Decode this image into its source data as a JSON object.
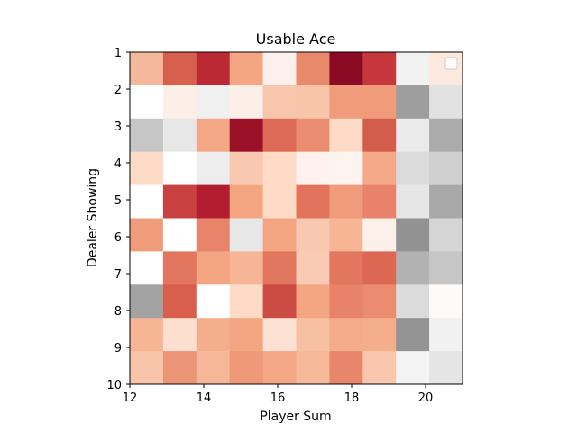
{
  "chart_data": {
    "type": "heatmap",
    "title": "Usable Ace",
    "xlabel": "Player Sum",
    "ylabel": "Dealer Showing",
    "x_ticks": [
      "12",
      "14",
      "16",
      "18",
      "20"
    ],
    "y_ticks": [
      "1",
      "2",
      "3",
      "4",
      "5",
      "6",
      "7",
      "8",
      "9",
      "10"
    ],
    "xlim": [
      12,
      21
    ],
    "ylim": [
      10,
      1
    ],
    "grid": false,
    "legend": "top-right, empty",
    "cells": [
      [
        "#f4b89a",
        "#d6604d",
        "#bb2a34",
        "#f4a582",
        "#fdf0ec",
        "#e8896c",
        "#8b0a24",
        "#c5373c",
        "#f2f2f2",
        "#fde8de"
      ],
      [
        "#ffffff",
        "#fdeee8",
        "#f0f0f0",
        "#fdeee7",
        "#f8c5ad",
        "#f8c4aa",
        "#f09c7b",
        "#f09c7b",
        "#9e9e9e",
        "#e2e2e2"
      ],
      [
        "#c6c6c6",
        "#e7e7e7",
        "#f4a785",
        "#9b1127",
        "#dd6b57",
        "#eb8d71",
        "#fddbc7",
        "#d35d4c",
        "#eaeaea",
        "#ababab"
      ],
      [
        "#fddbc7",
        "#ffffff",
        "#ededed",
        "#f8c8b0",
        "#fddbc7",
        "#fdf2ee",
        "#fdf4f0",
        "#f4aa88",
        "#dbdbdb",
        "#d0d0d0"
      ],
      [
        "#ffffff",
        "#c8403f",
        "#b21e2f",
        "#f4a582",
        "#fddbc7",
        "#e2745d",
        "#f09b7a",
        "#e8826a",
        "#e6e6e6",
        "#a9a9a9"
      ],
      [
        "#f09c7b",
        "#ffffff",
        "#e8846a",
        "#e8e8e8",
        "#f4a582",
        "#f8c8b0",
        "#f6b595",
        "#fdf0ea",
        "#929292",
        "#d5d5d5"
      ],
      [
        "#ffffff",
        "#e2755d",
        "#f4a582",
        "#f6b597",
        "#e2775f",
        "#f9cbb4",
        "#e2765e",
        "#dc6853",
        "#b2b2b2",
        "#c6c6c6"
      ],
      [
        "#a2a2a2",
        "#d95f4d",
        "#ffffff",
        "#fddbc7",
        "#cc4c44",
        "#f4a582",
        "#e8836a",
        "#eb8b70",
        "#dbdbdb",
        "#fefaf7"
      ],
      [
        "#f6b595",
        "#fddfd0",
        "#f4ae8c",
        "#f4a582",
        "#fde2d4",
        "#f8c0a3",
        "#f4ab89",
        "#f4ae8c",
        "#939393",
        "#f1f1f1"
      ],
      [
        "#f8c4aa",
        "#ec9476",
        "#f6b799",
        "#ef9979",
        "#f4a785",
        "#f6ba9b",
        "#e8856b",
        "#f8c7ae",
        "#f3f3f3",
        "#e5e5e5"
      ]
    ]
  }
}
